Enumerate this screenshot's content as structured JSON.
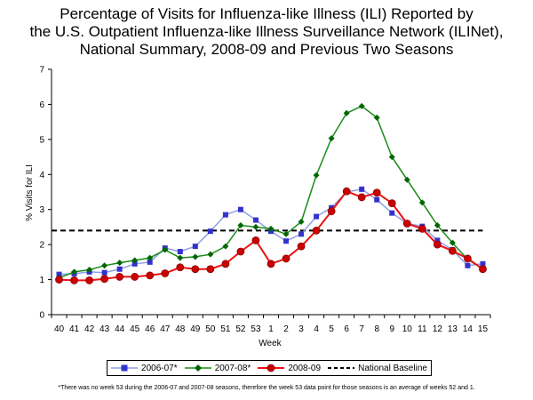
{
  "title_lines": [
    "Percentage of Visits for Influenza-like Illness (ILI) Reported by",
    "the U.S. Outpatient Influenza-like Illness Surveillance Network (ILINet),",
    "National Summary, 2008-09 and Previous Two Seasons"
  ],
  "footnote": "*There was no week 53 during the 2006-07 and 2007-08 seasons, therefore the week 53 data point for those seasons is an average of weeks 52 and 1.",
  "chart_data": {
    "type": "line",
    "title": "Percentage of Visits for Influenza-like Illness (ILI) Reported by the U.S. Outpatient Influenza-like Illness Surveillance Network (ILINet), National Summary, 2008-09 and Previous Two Seasons",
    "xlabel": "Week",
    "ylabel": "% Visits for ILI",
    "ylim": [
      0,
      7
    ],
    "yticks": [
      "0",
      "1",
      "2",
      "3",
      "4",
      "5",
      "6",
      "7"
    ],
    "grid": false,
    "legend_position": "bottom",
    "categories": [
      "40",
      "41",
      "42",
      "43",
      "44",
      "45",
      "46",
      "47",
      "48",
      "49",
      "50",
      "51",
      "52",
      "53",
      "1",
      "2",
      "3",
      "4",
      "5",
      "6",
      "7",
      "8",
      "9",
      "10",
      "11",
      "12",
      "13",
      "14",
      "15"
    ],
    "series": [
      {
        "name": "2006-07*",
        "color": "#3333cc",
        "line_color": "#8f9fe8",
        "marker": "square",
        "values": [
          1.15,
          1.17,
          1.22,
          1.2,
          1.3,
          1.45,
          1.5,
          1.9,
          1.8,
          1.95,
          2.38,
          2.85,
          3.0,
          2.7,
          2.38,
          2.1,
          2.3,
          2.8,
          3.05,
          3.5,
          3.58,
          3.28,
          2.9,
          2.6,
          2.52,
          2.12,
          1.85,
          1.4,
          1.45
        ]
      },
      {
        "name": "2007-08*",
        "color": "#006600",
        "line_color": "#1a8c1a",
        "marker": "diamond",
        "values": [
          1.05,
          1.22,
          1.28,
          1.4,
          1.48,
          1.55,
          1.62,
          1.85,
          1.62,
          1.65,
          1.72,
          1.95,
          2.55,
          2.5,
          2.45,
          2.3,
          2.65,
          3.98,
          5.03,
          5.75,
          5.95,
          5.62,
          4.5,
          3.85,
          3.2,
          2.55,
          2.05,
          1.58,
          1.3
        ]
      },
      {
        "name": "2008-09",
        "color": "#cc0000",
        "line_color": "#ee1111",
        "marker": "circle",
        "values": [
          1.0,
          0.98,
          0.98,
          1.02,
          1.08,
          1.08,
          1.12,
          1.18,
          1.35,
          1.3,
          1.3,
          1.45,
          1.8,
          2.12,
          1.45,
          1.6,
          1.95,
          2.4,
          2.95,
          3.52,
          3.35,
          3.48,
          3.18,
          2.6,
          2.45,
          2.0,
          1.82,
          1.6,
          1.3
        ]
      }
    ],
    "baseline": {
      "name": "National Baseline",
      "value": 2.4,
      "color": "#000000"
    }
  }
}
